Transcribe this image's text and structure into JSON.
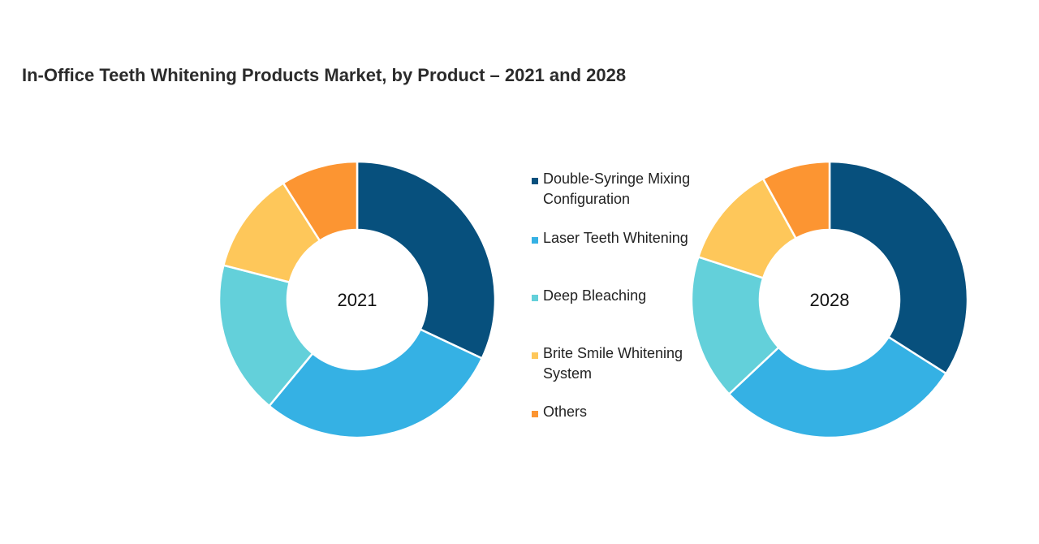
{
  "chart_data": {
    "type": "pie",
    "title": "In-Office Teeth Whitening Products Market, by Product – 2021 and 2028",
    "categories": [
      "Double-Syringe Mixing Configuration",
      "Laser Teeth Whitening",
      "Deep Bleaching",
      "Brite Smile Whitening System",
      "Others"
    ],
    "colors": [
      "#07507d",
      "#35b1e4",
      "#63d0da",
      "#fec75a",
      "#fc9532"
    ],
    "legend_position": "center",
    "series": [
      {
        "name": "2021",
        "values": [
          32,
          29,
          18,
          12,
          9
        ]
      },
      {
        "name": "2028",
        "values": [
          34,
          29,
          17,
          12,
          8
        ]
      }
    ]
  }
}
